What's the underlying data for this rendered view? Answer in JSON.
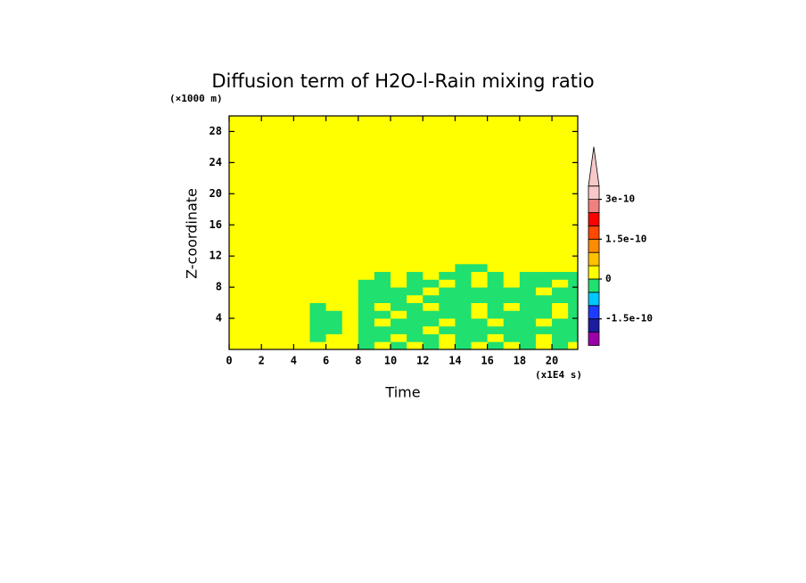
{
  "chart_data": {
    "type": "contour",
    "title": "Diffusion term of H2O-l-Rain mixing ratio",
    "y_unit": "(×1000 m)",
    "y_label": "Z-coordinate",
    "x_label": "Time",
    "x_unit": "(x1E4 s)",
    "xlim": [
      0,
      21.6
    ],
    "ylim": [
      0,
      30
    ],
    "xticks": [
      0,
      2,
      4,
      6,
      8,
      10,
      12,
      14,
      16,
      18,
      20
    ],
    "yticks": [
      4,
      8,
      12,
      16,
      20,
      24,
      28
    ],
    "xbins": [
      0,
      1,
      2,
      3,
      4,
      5,
      6,
      7,
      8,
      9,
      10,
      11,
      12,
      13,
      14,
      15,
      16,
      17,
      18,
      19,
      20,
      21,
      21.6
    ],
    "ybins": [
      0,
      1,
      2,
      3,
      4,
      5,
      6,
      7,
      8,
      9,
      10,
      11,
      12,
      30
    ],
    "values": [
      [
        2e-11,
        2e-11,
        2e-11,
        2e-11,
        2e-11,
        2e-11,
        2e-11,
        2e-11,
        -2e-11,
        2e-11,
        -2e-11,
        2e-11,
        -2e-11,
        2e-11,
        -2e-11,
        2e-11,
        -2e-11,
        2e-11,
        -2e-11,
        2e-11,
        -2e-11,
        2e-11
      ],
      [
        2e-11,
        2e-11,
        2e-11,
        2e-11,
        2e-11,
        -2e-11,
        2e-11,
        2e-11,
        -2e-11,
        -2e-11,
        2e-11,
        -2e-11,
        -2e-11,
        2e-11,
        -2e-11,
        -2e-11,
        2e-11,
        -2e-11,
        -2e-11,
        2e-11,
        -2e-11,
        -2e-11
      ],
      [
        2e-11,
        2e-11,
        2e-11,
        2e-11,
        2e-11,
        -2e-11,
        -2e-11,
        2e-11,
        -2e-11,
        -2e-11,
        -2e-11,
        -2e-11,
        2e-11,
        -2e-11,
        -2e-11,
        -2e-11,
        -2e-11,
        -2e-11,
        -2e-11,
        -2e-11,
        -2e-11,
        -2e-11
      ],
      [
        2e-11,
        2e-11,
        2e-11,
        2e-11,
        2e-11,
        -2e-11,
        -2e-11,
        2e-11,
        -2e-11,
        2e-11,
        -2e-11,
        -2e-11,
        -2e-11,
        2e-11,
        -2e-11,
        -2e-11,
        2e-11,
        -2e-11,
        -2e-11,
        2e-11,
        -2e-11,
        -2e-11
      ],
      [
        2e-11,
        2e-11,
        2e-11,
        2e-11,
        2e-11,
        -2e-11,
        -2e-11,
        2e-11,
        -2e-11,
        -2e-11,
        2e-11,
        -2e-11,
        -2e-11,
        -2e-11,
        -2e-11,
        2e-11,
        -2e-11,
        -2e-11,
        -2e-11,
        -2e-11,
        2e-11,
        -2e-11
      ],
      [
        2e-11,
        2e-11,
        2e-11,
        2e-11,
        2e-11,
        -2e-11,
        2e-11,
        2e-11,
        -2e-11,
        2e-11,
        -2e-11,
        -2e-11,
        2e-11,
        -2e-11,
        -2e-11,
        2e-11,
        -2e-11,
        2e-11,
        -2e-11,
        -2e-11,
        2e-11,
        -2e-11
      ],
      [
        2e-11,
        2e-11,
        2e-11,
        2e-11,
        2e-11,
        2e-11,
        2e-11,
        2e-11,
        -2e-11,
        -2e-11,
        -2e-11,
        2e-11,
        -2e-11,
        -2e-11,
        -2e-11,
        -2e-11,
        -2e-11,
        -2e-11,
        -2e-11,
        -2e-11,
        -2e-11,
        -2e-11
      ],
      [
        2e-11,
        2e-11,
        2e-11,
        2e-11,
        2e-11,
        2e-11,
        2e-11,
        2e-11,
        -2e-11,
        -2e-11,
        -2e-11,
        -2e-11,
        2e-11,
        -2e-11,
        -2e-11,
        -2e-11,
        -2e-11,
        -2e-11,
        -2e-11,
        2e-11,
        -2e-11,
        -2e-11
      ],
      [
        2e-11,
        2e-11,
        2e-11,
        2e-11,
        2e-11,
        2e-11,
        2e-11,
        2e-11,
        -2e-11,
        -2e-11,
        2e-11,
        -2e-11,
        -2e-11,
        2e-11,
        -2e-11,
        2e-11,
        -2e-11,
        2e-11,
        -2e-11,
        -2e-11,
        2e-11,
        -2e-11
      ],
      [
        2e-11,
        2e-11,
        2e-11,
        2e-11,
        2e-11,
        2e-11,
        2e-11,
        2e-11,
        2e-11,
        -2e-11,
        2e-11,
        -2e-11,
        2e-11,
        -2e-11,
        -2e-11,
        2e-11,
        -2e-11,
        2e-11,
        -2e-11,
        -2e-11,
        -2e-11,
        -2e-11
      ],
      [
        2e-11,
        2e-11,
        2e-11,
        2e-11,
        2e-11,
        2e-11,
        2e-11,
        2e-11,
        2e-11,
        2e-11,
        2e-11,
        2e-11,
        2e-11,
        2e-11,
        -2e-11,
        -2e-11,
        2e-11,
        2e-11,
        2e-11,
        2e-11,
        2e-11,
        2e-11
      ],
      [
        2e-11,
        2e-11,
        2e-11,
        2e-11,
        2e-11,
        2e-11,
        2e-11,
        2e-11,
        2e-11,
        2e-11,
        2e-11,
        2e-11,
        2e-11,
        2e-11,
        2e-11,
        2e-11,
        2e-11,
        2e-11,
        2e-11,
        2e-11,
        2e-11,
        2e-11
      ],
      [
        2e-11,
        2e-11,
        2e-11,
        2e-11,
        2e-11,
        2e-11,
        2e-11,
        2e-11,
        2e-11,
        2e-11,
        2e-11,
        2e-11,
        2e-11,
        2e-11,
        2e-11,
        2e-11,
        2e-11,
        2e-11,
        2e-11,
        2e-11,
        2e-11,
        2e-11
      ]
    ],
    "levels": [
      -2.5e-10,
      -2e-10,
      -1.5e-10,
      -1e-10,
      -5e-11,
      0,
      5e-11,
      1e-10,
      1.5e-10,
      2e-10,
      2.5e-10,
      3e-10,
      3.5e-10
    ],
    "colors": [
      "#9c00a8",
      "#1c1ca0",
      "#1e3cff",
      "#00c8ff",
      "#20e070",
      "#ffff00",
      "#ffc000",
      "#ff8c00",
      "#ff4800",
      "#ff0000",
      "#f08080",
      "#f8c8c8"
    ],
    "extend": "max",
    "colorbar_ticks": [
      3e-10,
      1.5e-10,
      0,
      -1.5e-10
    ]
  }
}
